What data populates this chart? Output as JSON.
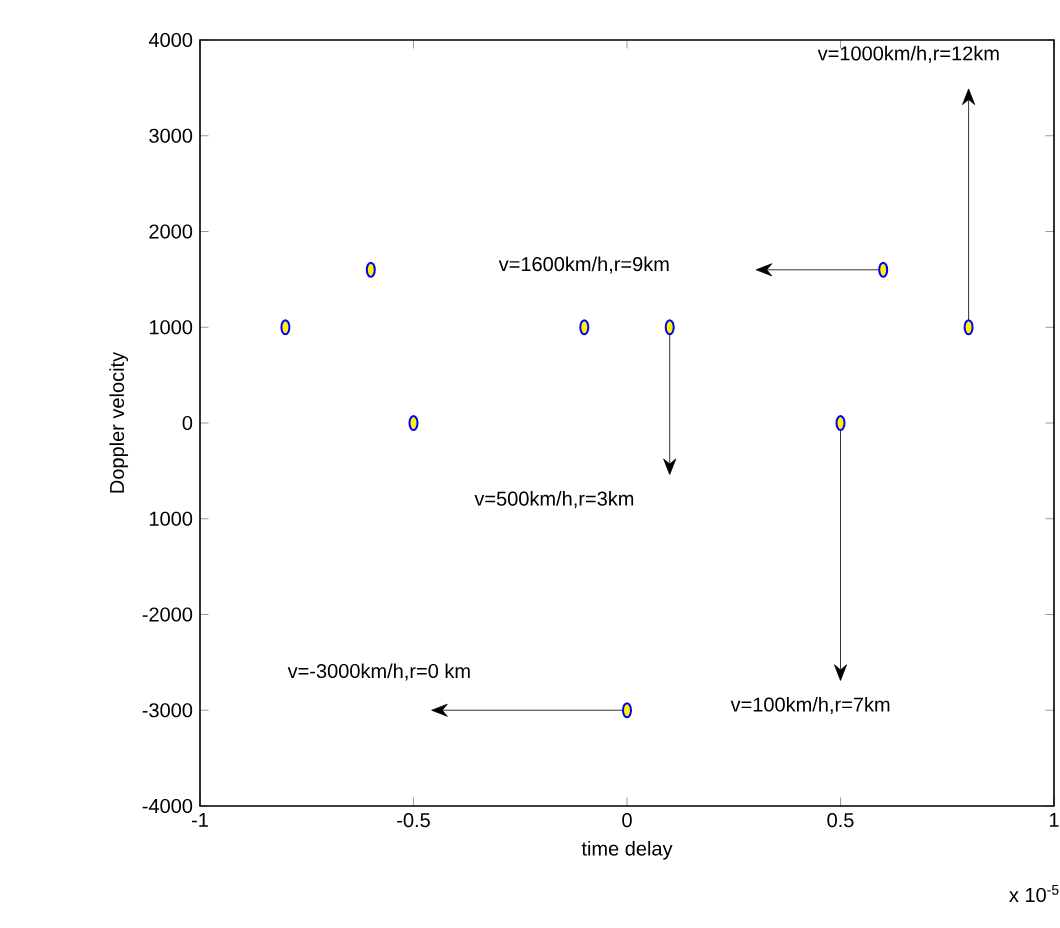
{
  "chart_data": {
    "type": "scatter",
    "xlabel": "time delay",
    "ylabel": "Doppler velocity",
    "x": [
      -0.8,
      -0.6,
      -0.5,
      -0.1,
      0.1,
      0,
      0.5,
      0.6,
      0.8
    ],
    "series": [
      {
        "color": "#0000ff",
        "values": [
          1000,
          1600,
          0,
          1000,
          1000,
          -3000,
          0,
          1600,
          1000
        ]
      }
    ],
    "grid": false,
    "xlim": [
      -1,
      1
    ],
    "ylim": [
      -4000,
      4000
    ],
    "xticks": [
      -1,
      -0.5,
      0,
      0.5,
      1
    ],
    "yticks": [
      -4000,
      -3000,
      -2000,
      {
        "value": -1000,
        "label": "1000"
      },
      0,
      1000,
      2000,
      3000,
      4000
    ],
    "annotations": [
      "v=1000km/h,r=12km",
      "v=1600km/h,r=9km",
      "v=500km/h,r=3km",
      "v=100km/h,r=7km",
      "v=-3000km/h,r=0 km",
      "x 10$^{-5}$"
    ]
  }
}
